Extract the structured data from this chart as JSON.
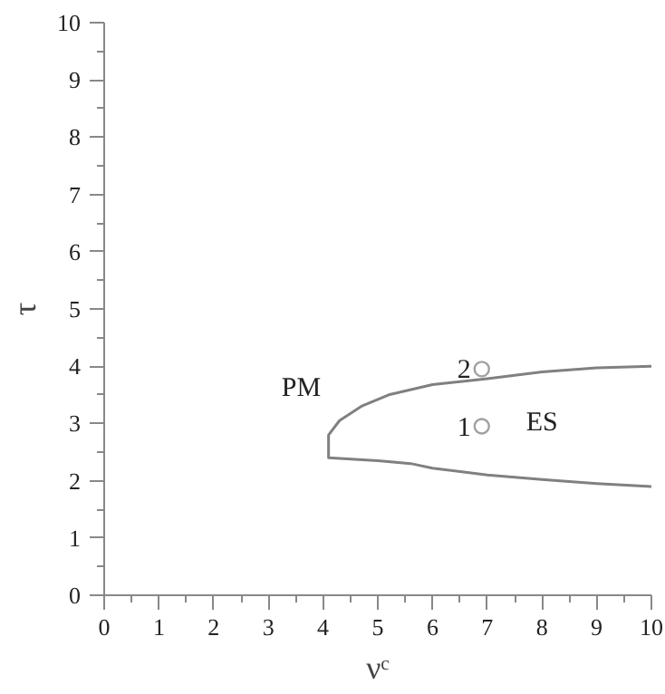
{
  "chart_data": {
    "type": "line",
    "xlabel": "νᶜ",
    "ylabel": "τ",
    "xlim": [
      0,
      10
    ],
    "ylim": [
      0,
      10
    ],
    "xticks": [
      0,
      1,
      2,
      3,
      4,
      5,
      6,
      7,
      8,
      9,
      10
    ],
    "yticks": [
      0,
      1,
      2,
      3,
      4,
      5,
      6,
      7,
      8,
      9,
      10
    ],
    "grid": false,
    "series": [
      {
        "color": "#808080",
        "x": [
          10,
          9,
          8,
          7,
          6,
          5.2,
          4.7,
          4.3,
          4.1,
          4.1,
          5,
          5.6,
          6,
          7,
          8,
          9,
          10
        ],
        "values": [
          4.0,
          3.97,
          3.9,
          3.78,
          3.68,
          3.5,
          3.3,
          3.05,
          2.8,
          2.4,
          2.35,
          2.3,
          2.22,
          2.1,
          2.02,
          1.95,
          1.9
        ]
      },
      {
        "type": "scatter",
        "marker": "circle",
        "color": "#a0a0a0",
        "x": [
          6.9,
          6.9
        ],
        "values": [
          3.95,
          2.95
        ]
      }
    ],
    "annotations": [
      {
        "text": "2",
        "x": 6.9,
        "y": 3.95
      },
      {
        "text": "1",
        "x": 6.9,
        "y": 2.95
      },
      "PM",
      "ES"
    ]
  }
}
